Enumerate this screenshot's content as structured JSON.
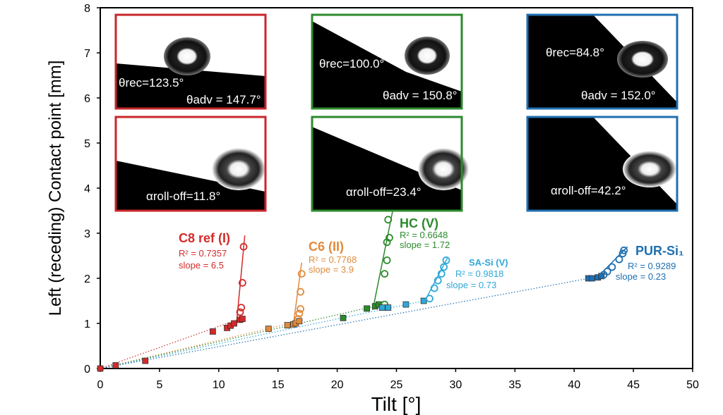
{
  "chart_data": {
    "type": "scatter",
    "xlabel": "Tilt [°]",
    "ylabel": "Left (receding) Contact point [mm]",
    "xlim": [
      0,
      50
    ],
    "ylim": [
      0,
      8
    ],
    "x_ticks": [
      "0",
      "5",
      "10",
      "15",
      "20",
      "25",
      "30",
      "35",
      "40",
      "45",
      "50"
    ],
    "y_ticks": [
      "0",
      "1",
      "2",
      "3",
      "4",
      "5",
      "6",
      "7",
      "8"
    ],
    "grid": false,
    "series": [
      {
        "name": "C8 ref (I)",
        "color": "#d42a2a",
        "r2": "R² = 0.7357",
        "slope": "slope = 6.5",
        "squares": [
          [
            0,
            0
          ],
          [
            1.3,
            0.07
          ],
          [
            3.8,
            0.17
          ],
          [
            9.5,
            0.82
          ],
          [
            10.7,
            0.9
          ],
          [
            11.0,
            0.95
          ],
          [
            11.3,
            1.0
          ],
          [
            11.8,
            1.08
          ],
          [
            12.0,
            1.1
          ]
        ],
        "circles": [
          [
            11.8,
            1.25
          ],
          [
            11.9,
            1.35
          ],
          [
            12.0,
            1.9
          ],
          [
            12.1,
            2.7
          ]
        ],
        "fit_through_origin": [
          [
            0,
            0
          ],
          [
            12.0,
            1.12
          ]
        ],
        "steep_fit": [
          [
            11.5,
            1.0
          ],
          [
            12.2,
            2.95
          ]
        ]
      },
      {
        "name": "C6 (II)",
        "color": "#e08b3c",
        "r2": "R² = 0.7768",
        "slope": "slope = 3.9",
        "squares": [
          [
            14.2,
            0.88
          ],
          [
            15.8,
            0.96
          ],
          [
            16.3,
            0.98
          ],
          [
            16.5,
            1.0
          ],
          [
            16.8,
            1.05
          ]
        ],
        "circles": [
          [
            16.7,
            1.1
          ],
          [
            16.8,
            1.22
          ],
          [
            16.9,
            1.32
          ],
          [
            16.9,
            1.7
          ],
          [
            17.0,
            2.1
          ]
        ],
        "fit_through_origin": [
          [
            0,
            0
          ],
          [
            16.8,
            1.05
          ]
        ],
        "steep_fit": [
          [
            16.3,
            0.98
          ],
          [
            17.0,
            2.35
          ]
        ]
      },
      {
        "name": "HC (V)",
        "color": "#2c8a2c",
        "r2": "R² = 0.6648",
        "slope": "slope = 1.72",
        "squares": [
          [
            20.5,
            1.12
          ],
          [
            22.5,
            1.33
          ],
          [
            23.2,
            1.38
          ],
          [
            23.5,
            1.42
          ]
        ],
        "circles": [
          [
            24.0,
            1.42
          ],
          [
            24.0,
            2.1
          ],
          [
            24.2,
            2.4
          ],
          [
            24.2,
            2.8
          ],
          [
            24.4,
            2.9
          ],
          [
            24.3,
            3.3
          ],
          [
            24.5,
            3.6
          ]
        ],
        "fit_through_origin": [
          [
            0,
            0
          ],
          [
            23.5,
            1.4
          ]
        ],
        "steep_fit": [
          [
            23.0,
            1.3
          ],
          [
            24.8,
            3.65
          ]
        ]
      },
      {
        "name": "SA-Si (V)",
        "color": "#2ea8d8",
        "r2": "R² = 0.9818",
        "slope": "slope = 0.73",
        "squares": [
          [
            23.8,
            1.35
          ],
          [
            24.3,
            1.35
          ],
          [
            25.8,
            1.42
          ],
          [
            27.3,
            1.5
          ]
        ],
        "circles": [
          [
            27.8,
            1.55
          ],
          [
            28.2,
            1.78
          ],
          [
            28.5,
            1.95
          ],
          [
            28.8,
            2.1
          ],
          [
            29.0,
            2.25
          ],
          [
            29.2,
            2.4
          ]
        ],
        "fit_through_origin": [
          [
            0,
            0
          ],
          [
            27.3,
            1.5
          ]
        ],
        "steep_fit": [
          [
            27.3,
            1.45
          ],
          [
            29.3,
            2.45
          ]
        ]
      },
      {
        "name": "PUR-Si₁",
        "color": "#1f6fb0",
        "r2": "R² = 0.9289",
        "slope": "slope = 0.23",
        "squares": [
          [
            41.2,
            2.0
          ],
          [
            41.5,
            2.0
          ],
          [
            42.0,
            2.02
          ],
          [
            42.3,
            2.05
          ]
        ],
        "circles": [
          [
            42.5,
            2.08
          ],
          [
            42.8,
            2.15
          ],
          [
            43.2,
            2.25
          ],
          [
            43.8,
            2.42
          ],
          [
            44.1,
            2.55
          ],
          [
            44.2,
            2.62
          ]
        ],
        "fit_through_origin": [
          [
            0,
            0
          ],
          [
            42.3,
            2.05
          ]
        ],
        "steep_fit": [
          [
            41.8,
            1.98
          ],
          [
            44.5,
            2.7
          ]
        ]
      }
    ],
    "insets": [
      {
        "color": "#c8262a",
        "labels": [
          "θrec=123.5°",
          "θadv = 147.7°"
        ]
      },
      {
        "color": "#2c8a2c",
        "labels": [
          "θrec=100.0°",
          "θadv = 150.8°"
        ]
      },
      {
        "color": "#1f6fb0",
        "labels": [
          "θrec=84.8°",
          "θadv = 152.0°"
        ]
      },
      {
        "color": "#c8262a",
        "labels": [
          "αroll-off=11.8°"
        ]
      },
      {
        "color": "#2c8a2c",
        "labels": [
          "αroll-off=23.4°"
        ]
      },
      {
        "color": "#1f6fb0",
        "labels": [
          "αroll-off=42.2°"
        ]
      }
    ]
  }
}
